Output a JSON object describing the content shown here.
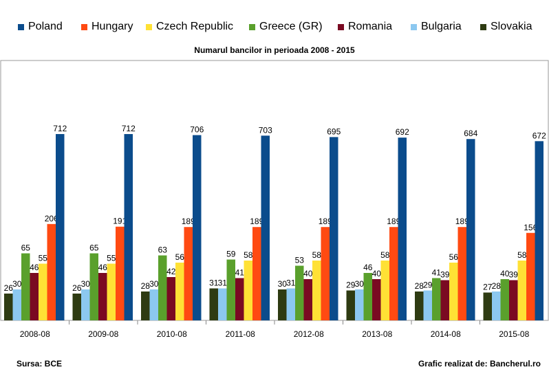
{
  "chart_data": {
    "type": "bar",
    "title": "Numarul bancilor in perioada 2008 - 2015",
    "categories": [
      "2008-08",
      "2009-08",
      "2010-08",
      "2011-08",
      "2012-08",
      "2013-08",
      "2014-08",
      "2015-08"
    ],
    "series": [
      {
        "name": "Poland",
        "color": "#0B4C8C",
        "values": [
          712,
          712,
          706,
          703,
          695,
          692,
          684,
          672
        ]
      },
      {
        "name": "Hungary",
        "color": "#FF4A12",
        "values": [
          206,
          191,
          189,
          189,
          189,
          189,
          189,
          156
        ]
      },
      {
        "name": "Czech Republic",
        "color": "#FFE135",
        "values": [
          55,
          55,
          56,
          58,
          58,
          58,
          56,
          58
        ]
      },
      {
        "name": "Greece (GR)",
        "color": "#5AA02C",
        "values": [
          65,
          65,
          63,
          59,
          53,
          46,
          41,
          40
        ]
      },
      {
        "name": "Romania",
        "color": "#7A0A22",
        "values": [
          46,
          46,
          42,
          41,
          40,
          40,
          39,
          39
        ]
      },
      {
        "name": "Bulgaria",
        "color": "#8CC8F0",
        "values": [
          30,
          30,
          30,
          31,
          31,
          30,
          29,
          28
        ]
      },
      {
        "name": "Slovakia",
        "color": "#2E3B12",
        "values": [
          26,
          26,
          28,
          31,
          30,
          29,
          28,
          27
        ]
      }
    ],
    "draw_order": [
      "Slovakia",
      "Bulgaria",
      "Greece (GR)",
      "Romania",
      "Czech Republic",
      "Hungary",
      "Poland"
    ],
    "axis_break": {
      "lower_max": 70,
      "upper_min": 140,
      "upper_max": 720
    },
    "grid": false,
    "legend_position": "top"
  },
  "footer": {
    "source": "Sursa: BCE",
    "credit": "Grafic realizat de: Bancherul.ro"
  }
}
